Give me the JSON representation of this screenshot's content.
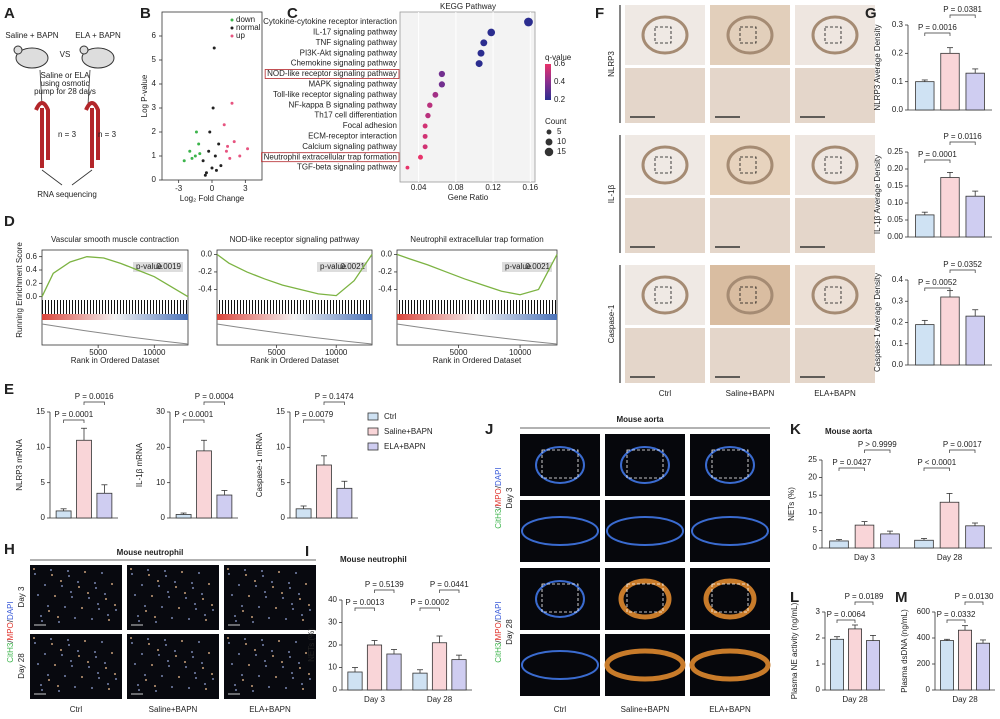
{
  "A": {
    "letter": "A",
    "left": "Saline + BAPN",
    "vs": "VS",
    "right": "ELA + BAPN",
    "note": [
      "Saline or ELA",
      "using osmotic",
      "pump for 28 days"
    ],
    "n_left": "n = 3",
    "n_right": "n = 3",
    "output": "RNA sequencing"
  },
  "B": {
    "letter": "B",
    "type": "scatter",
    "ylabel": "Log P-value",
    "xlabel": "Log₂ Fold Change",
    "xlim": [
      -4.5,
      4.5
    ],
    "ylim": [
      0,
      7
    ],
    "xticks": [
      -3,
      0,
      3
    ],
    "yticks": [
      0,
      1,
      2,
      3,
      4,
      5,
      6
    ],
    "series": [
      {
        "name": "down",
        "color": "#3cb44b",
        "x": [
          -2,
          -1.5,
          -1.2,
          -1.8,
          -1.1,
          -2.5,
          -1.4
        ],
        "y": [
          1.2,
          1,
          1.5,
          0.9,
          1.1,
          0.8,
          2
        ]
      },
      {
        "name": "normal",
        "color": "#222222",
        "x": [
          -0.5,
          0,
          0.3,
          -0.2,
          0.6,
          0.1,
          -0.8,
          0.8,
          -0.3,
          0.4,
          0.2,
          -0.6
        ],
        "y": [
          0.3,
          0.5,
          1,
          2,
          1.5,
          3,
          0.8,
          0.6,
          1.2,
          0.4,
          5.5,
          0.2
        ]
      },
      {
        "name": "up",
        "color": "#e75480",
        "x": [
          1.3,
          1.6,
          2,
          1.1,
          2.5,
          1.4,
          1.8,
          3.2
        ],
        "y": [
          1.2,
          0.9,
          1.6,
          2.3,
          1,
          1.4,
          3.2,
          1.3
        ]
      }
    ]
  },
  "C": {
    "letter": "C",
    "type": "dot",
    "title": "KEGG Pathway",
    "xlabel": "Gene Ratio",
    "xlim": [
      0.02,
      0.165
    ],
    "xticks": [
      0.04,
      0.08,
      0.12,
      0.16
    ],
    "pathways": [
      "Cytokine-cytokine receptor interaction",
      "IL-17 signaling pathway",
      "TNF signaling pathway",
      "PI3K-Akt signaling pathway",
      "Chemokine signaling pathway",
      "NOD-like receptor signaling pathway",
      "MAPK signaling pathway",
      "Toll-like receptor signaling pathway",
      "NF-kappa B signaling pathway",
      "Th17 cell differentiation",
      "Focal adhesion",
      "ECM-receptor interaction",
      "Calcium signaling pathway",
      "Neutrophil extracellular trap formation",
      "TGF-beta signaling pathway"
    ],
    "ratio": [
      0.158,
      0.118,
      0.11,
      0.107,
      0.105,
      0.065,
      0.065,
      0.058,
      0.052,
      0.05,
      0.047,
      0.047,
      0.047,
      0.042,
      0.028
    ],
    "counts": [
      16,
      12,
      10,
      10,
      10,
      8,
      8,
      7,
      6,
      6,
      5,
      5,
      5,
      5,
      3
    ],
    "qvalues": [
      0.05,
      0.15,
      0.12,
      0.1,
      0.1,
      0.35,
      0.35,
      0.45,
      0.5,
      0.5,
      0.55,
      0.55,
      0.55,
      0.6,
      0.6
    ],
    "boxed": [
      false,
      false,
      false,
      false,
      false,
      true,
      false,
      false,
      false,
      false,
      false,
      false,
      false,
      true,
      false
    ],
    "q_legend": {
      "title": "q-value",
      "ticks": [
        0.6,
        0.4,
        0.2
      ]
    },
    "count_legend": {
      "title": "Count",
      "ticks": [
        5,
        10,
        15
      ]
    }
  },
  "D": {
    "letter": "D",
    "type": "line",
    "ylabel": "Running Enrichment Score",
    "xlabel": "Rank in Ordered Dataset",
    "pvalue_label": "p-value",
    "xlim": [
      0,
      13000
    ],
    "xticks": [
      5000,
      10000
    ],
    "panels": [
      {
        "title": "Vascular smooth muscle contraction",
        "pvalue": 0.0019,
        "ylim": [
          -0.05,
          0.7
        ],
        "yticks": [
          {
            "value": 0,
            "label": "0.0"
          },
          0.2,
          0.4,
          0.6
        ],
        "x": [
          0,
          1000,
          2500,
          4000,
          5500,
          7000,
          8500,
          10000,
          11500,
          13000
        ],
        "y": [
          0,
          0.35,
          0.52,
          0.6,
          0.58,
          0.5,
          0.4,
          0.3,
          0.15,
          0
        ]
      },
      {
        "title": "NOD-like receptor signaling pathway",
        "pvalue": 0.0021,
        "ylim": [
          -0.52,
          0.05
        ],
        "yticks": [
          {
            "value": 0,
            "label": "0.0"
          },
          -0.2,
          -0.4
        ],
        "x": [
          0,
          1000,
          2500,
          4000,
          5500,
          7000,
          8500,
          10000,
          11500,
          13000
        ],
        "y": [
          0,
          -0.1,
          -0.2,
          -0.28,
          -0.35,
          -0.4,
          -0.45,
          -0.47,
          -0.3,
          0
        ]
      },
      {
        "title": "Neutrophil extracellular trap formation",
        "pvalue": 0.0021,
        "ylim": [
          -0.52,
          0.05
        ],
        "yticks": [
          {
            "value": 0,
            "label": "0.0"
          },
          -0.2,
          -0.4
        ],
        "x": [
          0,
          1000,
          2500,
          4000,
          5500,
          7000,
          8500,
          10000,
          11500,
          13000
        ],
        "y": [
          0,
          -0.05,
          -0.12,
          -0.2,
          -0.28,
          -0.35,
          -0.42,
          -0.46,
          -0.4,
          0
        ]
      }
    ]
  },
  "groups": {
    "names": [
      "Ctrl",
      "Saline+BAPN",
      "ELA+BAPN"
    ],
    "colors": [
      "#cfe2f3",
      "#f9d5d8",
      "#cfcdf1"
    ]
  },
  "E": {
    "letter": "E",
    "charts": [
      {
        "type": "bar",
        "ylabel": "NLRP3 mRNA",
        "ylim": [
          0,
          15
        ],
        "yticks": [
          0,
          5,
          10,
          15
        ],
        "values": [
          [
            1,
            11,
            3.5
          ]
        ],
        "errors": [
          [
            0.3,
            1.7,
            1.2
          ]
        ],
        "pvalues": [
          [
            "P = 0.0001",
            "P = 0.0016"
          ]
        ]
      },
      {
        "type": "bar",
        "ylabel": "IL-1β mRNA",
        "ylim": [
          0,
          30
        ],
        "yticks": [
          0,
          10,
          20,
          30
        ],
        "values": [
          [
            1,
            19,
            6.5
          ]
        ],
        "errors": [
          [
            0.4,
            3,
            1.3
          ]
        ],
        "pvalues": [
          [
            "P < 0.0001",
            "P = 0.0004"
          ]
        ]
      },
      {
        "type": "bar",
        "ylabel": "Caspase-1 mRNA",
        "ylim": [
          0,
          15
        ],
        "yticks": [
          0,
          5,
          10,
          15
        ],
        "values": [
          [
            1.3,
            7.5,
            4.2
          ]
        ],
        "errors": [
          [
            0.4,
            1.3,
            1
          ]
        ],
        "pvalues": [
          [
            "P = 0.0079",
            "P = 0.1474"
          ]
        ]
      }
    ]
  },
  "F": {
    "letter": "F",
    "rows": [
      "NLRP3",
      "IL-1β",
      "Caspase-1"
    ],
    "cols": [
      "Ctrl",
      "Saline+BAPN",
      "ELA+BAPN"
    ]
  },
  "G": {
    "letter": "G",
    "charts": [
      {
        "type": "bar",
        "ylabel": "NLRP3 Average Density",
        "ylim": [
          0,
          0.3
        ],
        "yticks": [
          {
            "value": 0,
            "label": "0.0"
          },
          0.1,
          0.2,
          0.3
        ],
        "values": [
          [
            0.1,
            0.2,
            0.13
          ]
        ],
        "errors": [
          [
            0.006,
            0.02,
            0.015
          ]
        ],
        "pvalues": [
          [
            "P = 0.0016",
            "P = 0.0381"
          ]
        ]
      },
      {
        "type": "bar",
        "ylabel": "IL-1β Average Density",
        "ylim": [
          0,
          0.25
        ],
        "yticks": [
          {
            "value": 0,
            "label": "0.00"
          },
          0.05,
          {
            "value": 0.1,
            "label": "0.10"
          },
          0.15,
          {
            "value": 0.2,
            "label": "0.20"
          },
          0.25
        ],
        "values": [
          [
            0.065,
            0.175,
            0.12
          ]
        ],
        "errors": [
          [
            0.008,
            0.015,
            0.015
          ]
        ],
        "pvalues": [
          [
            "P = 0.0001",
            "P = 0.0116"
          ]
        ]
      },
      {
        "type": "bar",
        "ylabel": "Caspase-1 Average Density",
        "ylim": [
          0,
          0.4
        ],
        "yticks": [
          {
            "value": 0,
            "label": "0.0"
          },
          0.1,
          0.2,
          0.3,
          0.4
        ],
        "values": [
          [
            0.19,
            0.32,
            0.23
          ]
        ],
        "errors": [
          [
            0.02,
            0.03,
            0.03
          ]
        ],
        "pvalues": [
          [
            "P = 0.0052",
            "P = 0.0352"
          ]
        ]
      }
    ]
  },
  "H": {
    "letter": "H",
    "title": "Mouse neutrophil",
    "rows": [
      "Day 3",
      "Day 28"
    ],
    "stain": {
      "parts": [
        "CitH3",
        "MPO",
        "DAPI"
      ],
      "sep": "/"
    },
    "cols": [
      "Ctrl",
      "Saline+BAPN",
      "ELA+BAPN"
    ]
  },
  "I": {
    "letter": "I",
    "title": "Mouse neutrophil",
    "type": "bar",
    "ylabel": "NETs (%)",
    "ylim": [
      0,
      40
    ],
    "yticks": [
      0,
      10,
      20,
      30,
      40
    ],
    "categories": [
      "Day 3",
      "Day 28"
    ],
    "values": [
      [
        8,
        20,
        16
      ],
      [
        7.5,
        21,
        13.5
      ]
    ],
    "errors": [
      [
        2,
        2,
        2
      ],
      [
        1.5,
        3,
        2
      ]
    ],
    "pvalues": [
      [
        "P = 0.0013",
        "P = 0.5139"
      ],
      [
        "P = 0.0002",
        "P = 0.0441"
      ]
    ]
  },
  "J": {
    "letter": "J",
    "title": "Mouse aorta",
    "rows": [
      "Day 3",
      "Day 28"
    ],
    "stain": {
      "parts": [
        "CitH3",
        "MPO",
        "DAPI"
      ],
      "sep": "/"
    },
    "cols": [
      "Ctrl",
      "Saline+BAPN",
      "ELA+BAPN"
    ]
  },
  "K": {
    "letter": "K",
    "title": "Mouse aorta",
    "type": "bar",
    "ylabel": "NETs (%)",
    "ylim": [
      0,
      25
    ],
    "yticks": [
      0,
      5,
      10,
      15,
      20,
      25
    ],
    "categories": [
      "Day 3",
      "Day 28"
    ],
    "values": [
      [
        2,
        6.5,
        4
      ],
      [
        2.2,
        13,
        6.3
      ]
    ],
    "errors": [
      [
        0.4,
        1,
        0.8
      ],
      [
        0.5,
        2.5,
        0.8
      ]
    ],
    "pvalues": [
      [
        "P = 0.0427",
        "P > 0.9999"
      ],
      [
        "P < 0.0001",
        "P = 0.0017"
      ]
    ]
  },
  "L": {
    "letter": "L",
    "type": "bar",
    "ylabel": "Plasma NE activity (ng/mL)",
    "ylim": [
      0,
      3
    ],
    "yticks": [
      0,
      1,
      2,
      3
    ],
    "categories": [
      "Day 28"
    ],
    "values": [
      [
        1.95,
        2.35,
        1.9
      ]
    ],
    "errors": [
      [
        0.1,
        0.15,
        0.2
      ]
    ],
    "pvalues": [
      [
        "P = 0.0064",
        "P = 0.0189"
      ]
    ]
  },
  "M": {
    "letter": "M",
    "type": "bar",
    "ylabel": "Plasma dsDNA (ng/mL)",
    "ylim": [
      0,
      600
    ],
    "yticks": [
      0,
      200,
      400,
      600
    ],
    "categories": [
      "Day 28"
    ],
    "values": [
      [
        380,
        460,
        360
      ]
    ],
    "errors": [
      [
        10,
        35,
        25
      ]
    ],
    "pvalues": [
      [
        "P = 0.0332",
        "P = 0.0130"
      ]
    ]
  }
}
